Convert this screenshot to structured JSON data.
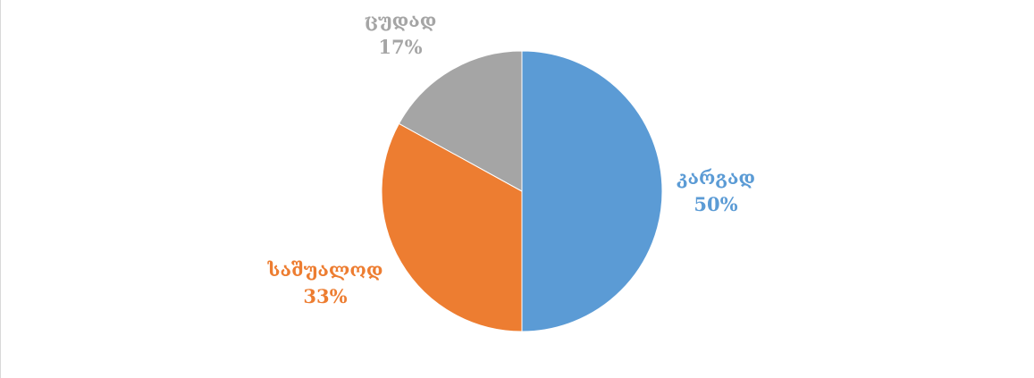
{
  "chart_data": {
    "type": "pie",
    "title": "",
    "categories": [
      "კარგად",
      "საშუალოდ",
      "ცუდად"
    ],
    "values": [
      50,
      33,
      17
    ],
    "percent_labels": [
      "50%",
      "33%",
      "17%"
    ],
    "colors": [
      "#5b9bd5",
      "#ed7d31",
      "#a5a5a5"
    ],
    "start_angle_deg": 0,
    "direction": "clockwise",
    "legend": "none",
    "data_labels": "outside, category name and percentage, colored by slice"
  }
}
